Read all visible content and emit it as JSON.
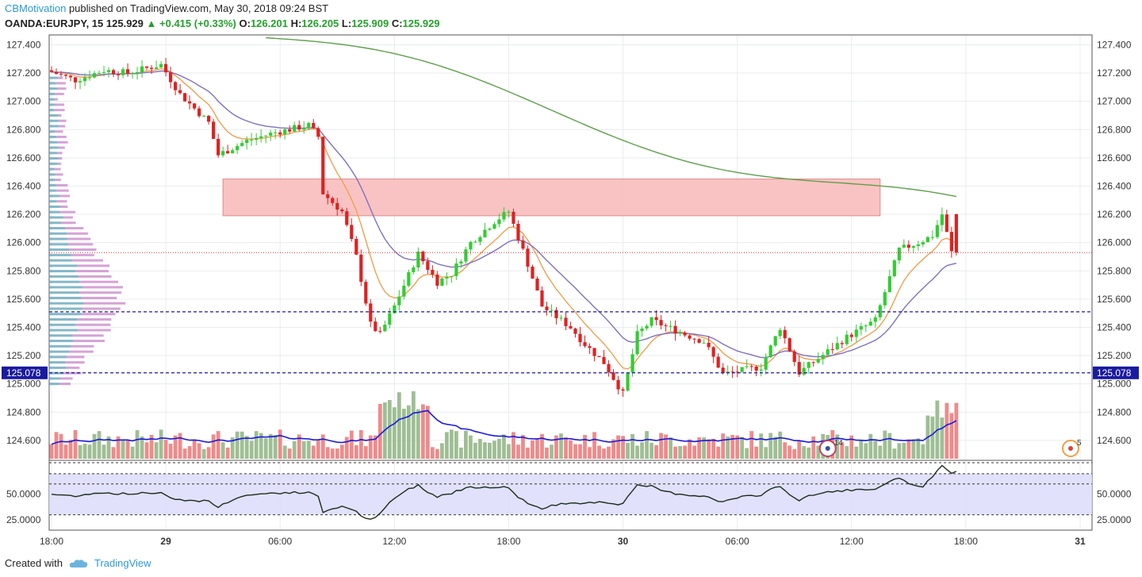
{
  "header": {
    "author": "CBMotivation",
    "published_text": "published on TradingView.com, May 30, 2018 09:24 BST",
    "symbol": "OANDA:EURJPY, 15",
    "last": "125.929",
    "change": "+0.415 (+0.33%)",
    "o_label": "O:",
    "o_value": "126.201",
    "h_label": "H:",
    "h_value": "126.205",
    "l_label": "L:",
    "l_value": "125.909",
    "c_label": "C:",
    "c_value": "125.929"
  },
  "footer": {
    "created_with": "Created with",
    "brand": "TradingView"
  },
  "colors": {
    "up": "#33cc33",
    "down": "#dd2222",
    "vol_up": "#9fbe94",
    "vol_down": "#ee8b8b",
    "ema_fast": "#f0a050",
    "ema_mid": "#8070c0",
    "ema_slow": "#5da04a",
    "vol_ma": "#1a1ae0",
    "zone": "#f9b8b8",
    "level": "#1a1aa0",
    "rsi": "#1b2b1b"
  },
  "chart_data": {
    "type": "candlestick",
    "symbol": "OANDA:EURJPY",
    "timeframe": "15",
    "price_axis": {
      "ylim": [
        124.47,
        127.47
      ],
      "ticks": [
        "127.400",
        "127.200",
        "127.000",
        "126.800",
        "126.600",
        "126.400",
        "126.200",
        "126.000",
        "125.800",
        "125.600",
        "125.400",
        "125.200",
        "125.000",
        "124.800",
        "124.600"
      ],
      "badge_value": "125.078"
    },
    "time_axis": {
      "ticks": [
        {
          "label": "18:00",
          "bar": 0,
          "bold": false
        },
        {
          "label": "29",
          "bar": 24,
          "bold": true
        },
        {
          "label": "06:00",
          "bar": 48,
          "bold": false
        },
        {
          "label": "12:00",
          "bar": 72,
          "bold": false
        },
        {
          "label": "18:00",
          "bar": 96,
          "bold": false
        },
        {
          "label": "30",
          "bar": 120,
          "bold": true
        },
        {
          "label": "06:00",
          "bar": 144,
          "bold": false
        },
        {
          "label": "12:00",
          "bar": 168,
          "bold": false
        },
        {
          "label": "18:00",
          "bar": 192,
          "bold": false
        },
        {
          "label": "31",
          "bar": 216,
          "bold": true
        }
      ]
    },
    "bars_visible": 219,
    "candles": [],
    "resistance_zone": {
      "low": 126.19,
      "high": 126.45,
      "start_bar": 36,
      "end_bar": 174
    },
    "levels": [
      {
        "value": 125.51,
        "style": "dashed"
      },
      {
        "value": 125.078,
        "style": "dashed"
      }
    ],
    "current_price_line": 125.929,
    "rsi": {
      "ticks": [
        "50.0000",
        "25.0000"
      ],
      "ylim": [
        15,
        83
      ],
      "bands": [
        70,
        60,
        30
      ]
    },
    "markers": [
      {
        "label": "14",
        "bar": 163
      },
      {
        "label": "5",
        "bar": 214
      }
    ]
  }
}
